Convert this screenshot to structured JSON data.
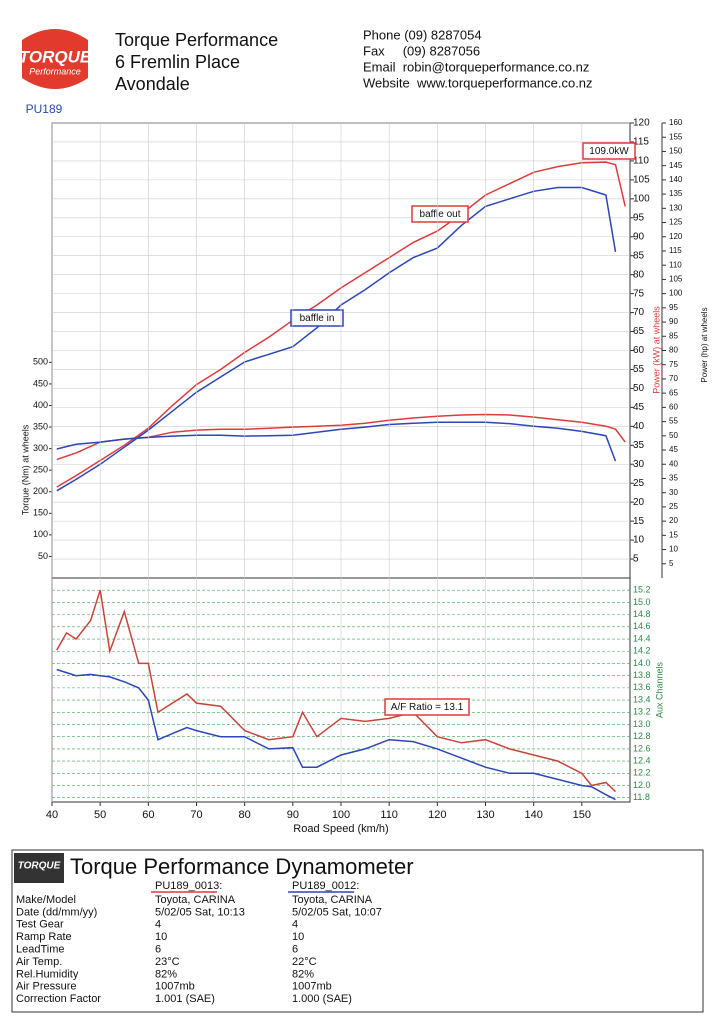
{
  "header": {
    "logo": "TORQUE",
    "logo_sub": "Performance",
    "company": [
      "Torque Performance",
      "6 Fremlin Place",
      "Avondale"
    ],
    "contact": [
      "Phone (09) 8287054",
      "Fax     (09) 8287056",
      "Email  robin@torqueperformance.co.nz",
      "Website  www.torqueperformance.co.nz"
    ],
    "code": "PU189"
  },
  "chart_data": [
    {
      "type": "line",
      "xlim": [
        40,
        160
      ],
      "ylim": [
        0,
        1055
      ],
      "yticks": [
        50,
        100,
        150,
        200,
        250,
        300,
        350,
        400,
        450,
        500
      ],
      "ylabel": "Torque (Nm) at wheels",
      "y2lim": [
        0,
        120
      ],
      "y2ticks": [
        5,
        10,
        15,
        20,
        25,
        30,
        35,
        40,
        45,
        50,
        55,
        60,
        65,
        70,
        75,
        80,
        85,
        90,
        95,
        100,
        105,
        110,
        115,
        120
      ],
      "y2label": "Power (kW) at wheels",
      "y3lim": [
        0,
        160
      ],
      "y3ticks": [
        5,
        10,
        15,
        20,
        25,
        30,
        35,
        40,
        45,
        50,
        55,
        60,
        65,
        70,
        75,
        80,
        85,
        90,
        95,
        100,
        105,
        110,
        115,
        120,
        125,
        130,
        135,
        140,
        145,
        150,
        155,
        160
      ],
      "y3label": "Power (hp) at wheels",
      "grid": true,
      "x": [
        41,
        45,
        50,
        55,
        60,
        65,
        70,
        75,
        80,
        85,
        90,
        95,
        100,
        105,
        110,
        115,
        120,
        125,
        130,
        135,
        140,
        145,
        150,
        155,
        157,
        159
      ],
      "series": [
        {
          "color": "#e03a3a",
          "axis": "y2",
          "values": [
            24,
            27,
            31,
            35,
            39.5,
            45.5,
            51,
            55,
            59.5,
            63.5,
            68,
            72,
            76.5,
            80.5,
            84.5,
            88.5,
            91.5,
            96,
            101,
            104,
            107,
            108.5,
            109.5,
            109.7,
            109,
            98
          ]
        },
        {
          "color": "#2b46b8",
          "axis": "y2",
          "values": [
            23,
            26,
            30,
            34.5,
            39,
            44,
            49,
            53,
            57,
            59,
            61,
            66,
            72,
            76,
            80.5,
            84.5,
            87,
            93,
            98,
            100,
            102,
            103,
            103,
            101,
            86,
            null
          ]
        },
        {
          "color": "#e03a3a",
          "axis": "y",
          "values": [
            275,
            290,
            315,
            322,
            326,
            338,
            343,
            345,
            345,
            347,
            350,
            352,
            354,
            359,
            366,
            371,
            375,
            378,
            379,
            378,
            373,
            367,
            361,
            352,
            345,
            315
          ]
        },
        {
          "color": "#2b46b8",
          "axis": "y",
          "values": [
            299,
            310,
            315,
            322,
            326,
            329,
            331,
            331,
            329,
            330,
            331,
            338,
            345,
            350,
            356,
            359,
            361,
            361,
            361,
            358,
            352,
            347,
            340,
            330,
            271,
            null
          ]
        }
      ],
      "annotations": [
        "109.0kW",
        "baffle out",
        "baffle in"
      ]
    },
    {
      "type": "line",
      "xlim": [
        40,
        160
      ],
      "xticks": [
        40,
        50,
        60,
        70,
        80,
        90,
        100,
        110,
        120,
        130,
        140,
        150
      ],
      "xlabel": "Road Speed (km/h)",
      "ylim": [
        11.73,
        15.4
      ],
      "yticks": [
        11.8,
        {
          "value": 12,
          "label": "12.0"
        },
        12.2,
        12.4,
        12.6,
        12.8,
        {
          "value": 13,
          "label": "13.0"
        },
        13.2,
        13.4,
        13.6,
        13.8,
        {
          "value": 14,
          "label": "14.0"
        },
        14.2,
        14.4,
        14.6,
        14.8,
        {
          "value": 15,
          "label": "15.0"
        },
        15.2
      ],
      "ylabel": "Aux Channels",
      "grid": true,
      "x": [
        41,
        43,
        45,
        48,
        50,
        52,
        55,
        58,
        60,
        62,
        65,
        68,
        70,
        75,
        80,
        85,
        90,
        92,
        95,
        100,
        105,
        110,
        115,
        120,
        125,
        130,
        135,
        140,
        145,
        150,
        152,
        155,
        157
      ],
      "series": [
        {
          "color": "#c8443a",
          "values": [
            14.22,
            14.5,
            14.4,
            14.7,
            15.2,
            14.2,
            14.85,
            14.0,
            14.0,
            13.2,
            13.35,
            13.5,
            13.35,
            13.3,
            12.9,
            12.75,
            12.8,
            13.2,
            12.8,
            13.1,
            13.05,
            13.1,
            13.2,
            12.8,
            12.7,
            12.75,
            12.6,
            12.5,
            12.4,
            12.2,
            12.0,
            12.05,
            11.9
          ]
        },
        {
          "color": "#2b46b8",
          "values": [
            13.9,
            13.85,
            13.8,
            13.82,
            13.8,
            13.78,
            13.7,
            13.6,
            13.4,
            12.75,
            12.85,
            12.95,
            12.9,
            12.8,
            12.8,
            12.6,
            12.62,
            12.3,
            12.3,
            12.5,
            12.6,
            12.75,
            12.72,
            12.6,
            12.45,
            12.3,
            12.2,
            12.2,
            12.1,
            12.0,
            11.98,
            11.85,
            11.77
          ]
        }
      ],
      "annotations": [
        "A/F Ratio = 13.1"
      ]
    }
  ],
  "table": {
    "title": "Torque Performance Dynamometer",
    "columns": [
      "PU189_0013:",
      "PU189_0012:"
    ],
    "rows": [
      [
        "Make/Model",
        "Toyota, CARINA",
        "Toyota, CARINA"
      ],
      [
        "Date (dd/mm/yy)",
        "5/02/05 Sat, 10:13",
        "5/02/05 Sat, 10:07"
      ],
      [
        "Test Gear",
        "4",
        "4"
      ],
      [
        "Ramp Rate",
        "10",
        "10"
      ],
      [
        "LeadTime",
        "6",
        "6"
      ],
      [
        "Air Temp.",
        "23°C",
        "22°C"
      ],
      [
        "Rel.Humidity",
        "82%",
        "82%"
      ],
      [
        "Air Pressure",
        "1007mb",
        "1007mb"
      ],
      [
        "Correction Factor",
        "1.001 (SAE)",
        "1.000 (SAE)"
      ]
    ]
  }
}
